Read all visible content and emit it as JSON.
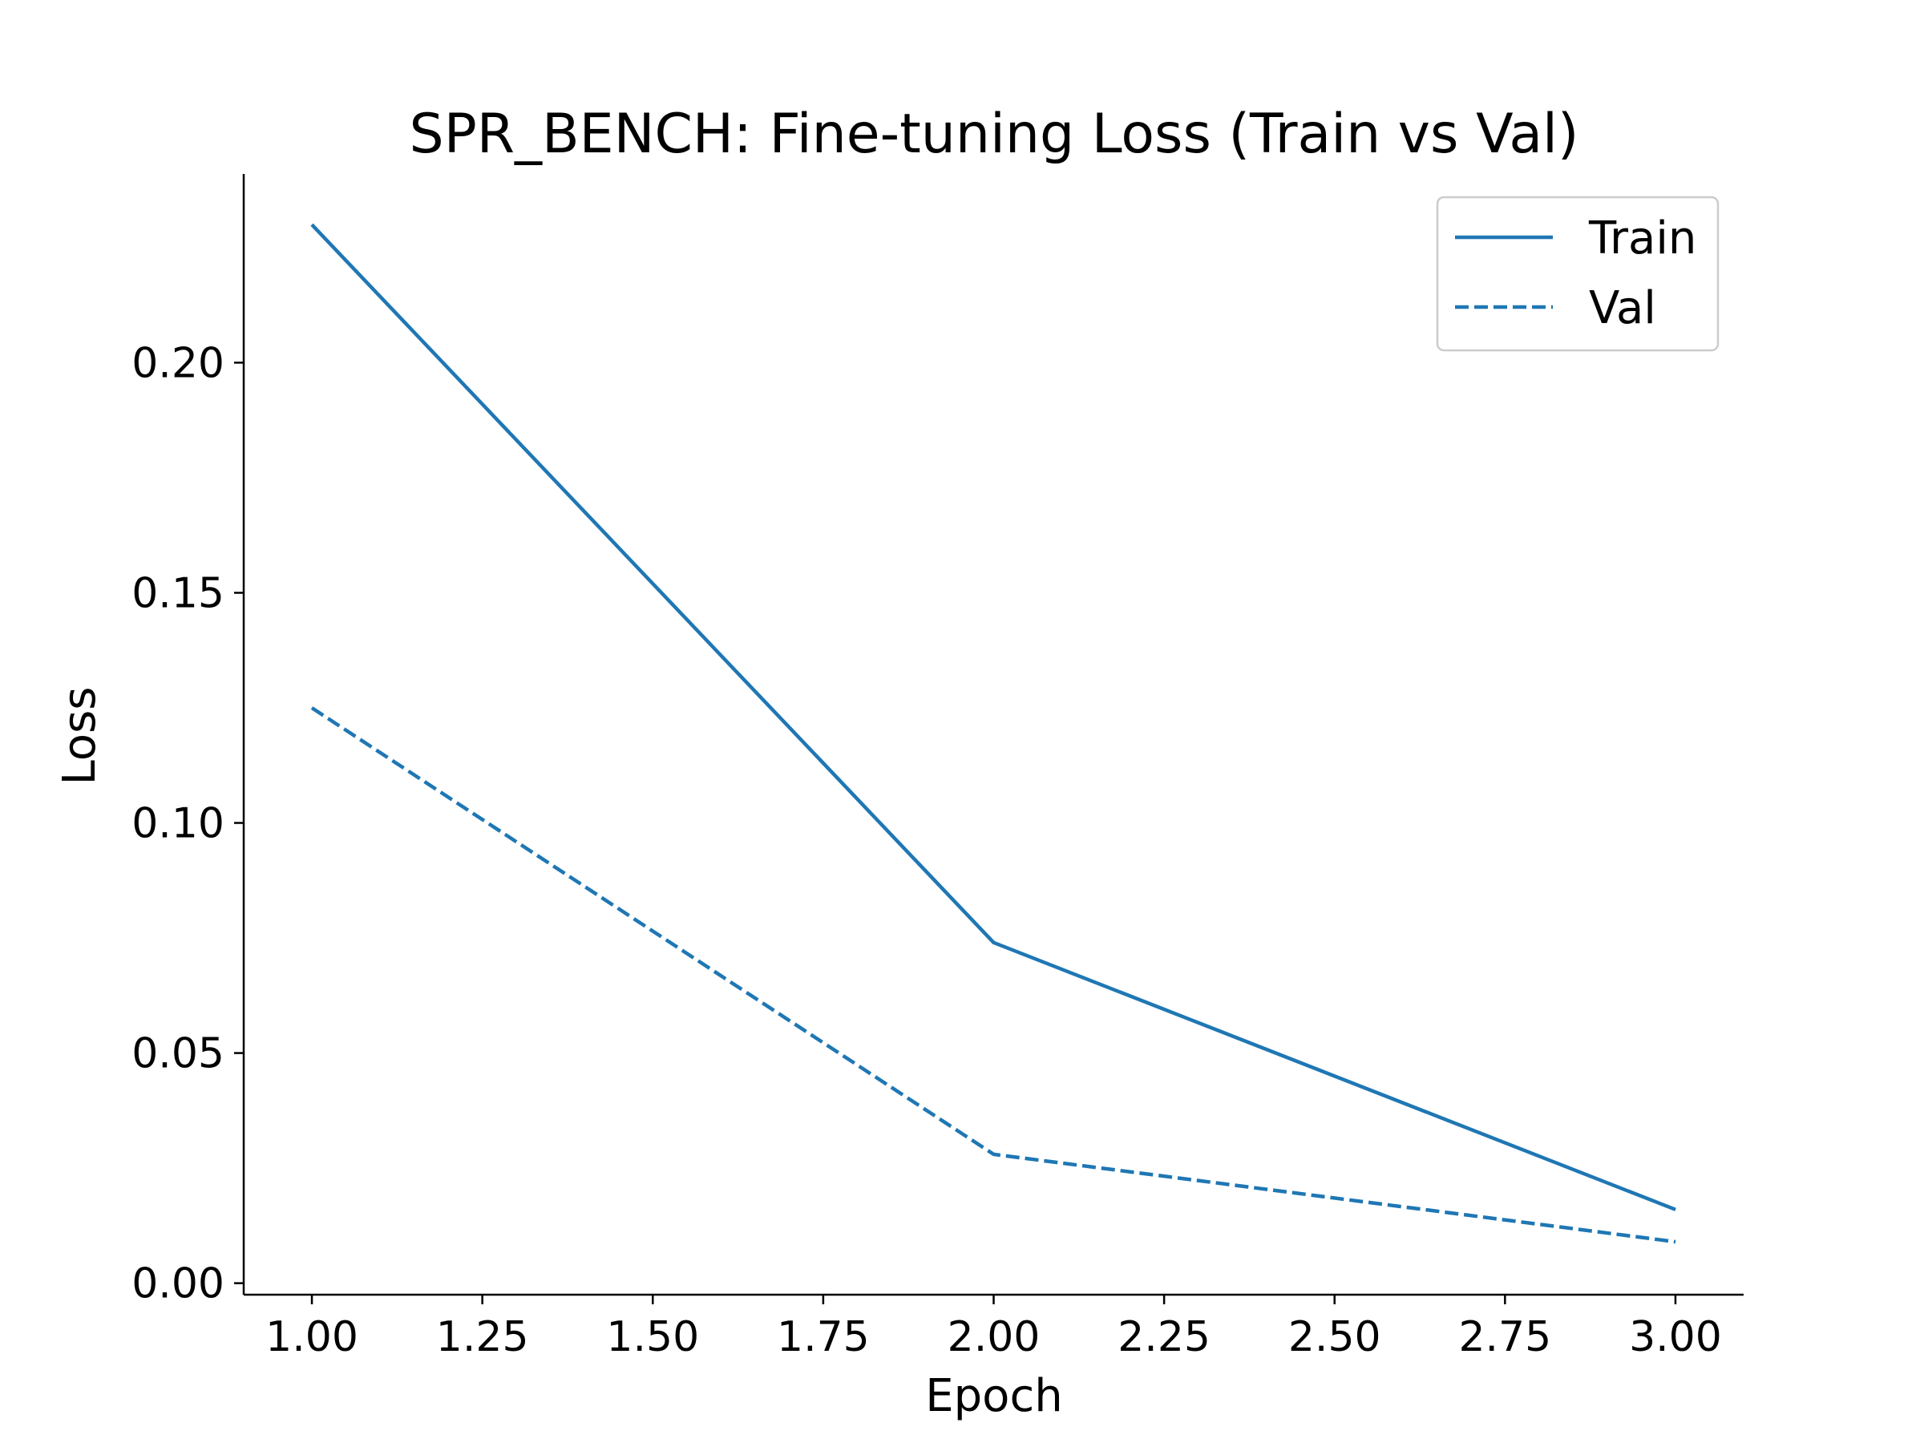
{
  "chart_data": {
    "type": "line",
    "title": "SPR_BENCH: Fine-tuning Loss (Train vs Val)",
    "xlabel": "Epoch",
    "ylabel": "Loss",
    "x": [
      1,
      2,
      3
    ],
    "series": [
      {
        "name": "Train",
        "values": [
          0.23,
          0.074,
          0.016
        ],
        "style": "solid",
        "color": "#1f77b4"
      },
      {
        "name": "Val",
        "values": [
          0.125,
          0.028,
          0.009
        ],
        "style": "dashed",
        "color": "#1f77b4"
      }
    ],
    "xlim": [
      0.9,
      3.1
    ],
    "ylim": [
      -0.0025,
      0.241
    ],
    "xticks": [
      "1.00",
      "1.25",
      "1.50",
      "1.75",
      "2.00",
      "2.25",
      "2.50",
      "2.75",
      "3.00"
    ],
    "yticks": [
      "0.00",
      "0.05",
      "0.10",
      "0.15",
      "0.20"
    ],
    "legend": "top-right",
    "grid": false
  }
}
